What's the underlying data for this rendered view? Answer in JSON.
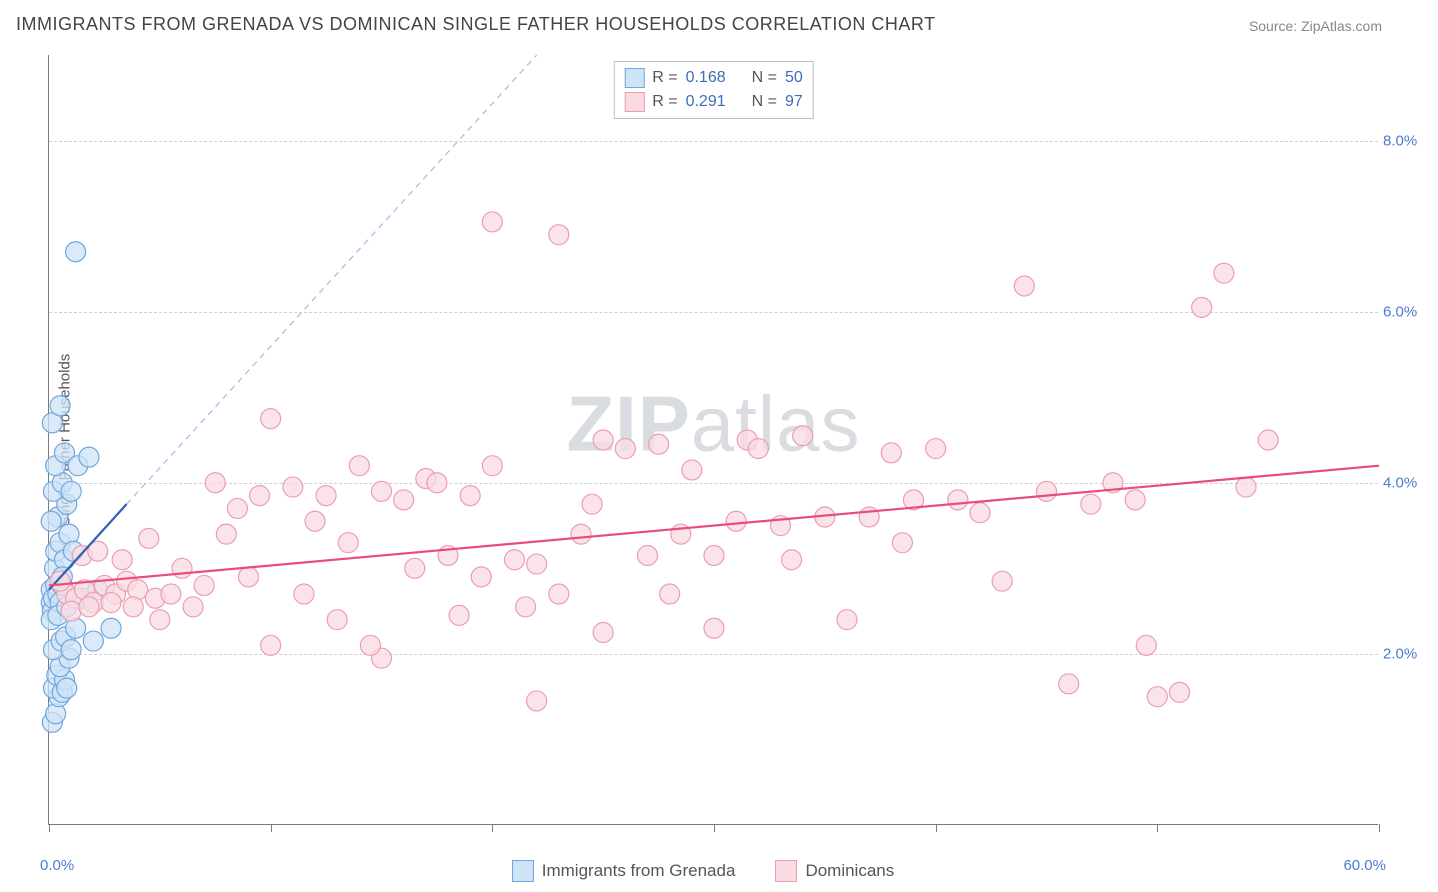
{
  "title": "IMMIGRANTS FROM GRENADA VS DOMINICAN SINGLE FATHER HOUSEHOLDS CORRELATION CHART",
  "source_label": "Source:",
  "source_value": "ZipAtlas.com",
  "watermark_bold": "ZIP",
  "watermark_rest": "atlas",
  "chart": {
    "type": "scatter",
    "xlim": [
      0,
      60
    ],
    "ylim": [
      0,
      9
    ],
    "x_start_label": "0.0%",
    "x_end_label": "60.0%",
    "y_ticks": [
      2.0,
      4.0,
      6.0,
      8.0
    ],
    "y_tick_labels": [
      "2.0%",
      "4.0%",
      "6.0%",
      "8.0%"
    ],
    "x_tick_positions": [
      0,
      10,
      20,
      30,
      40,
      50,
      60
    ],
    "ylabel": "Single Father Households",
    "grid_color": "#d0d0d0",
    "axis_color": "#7a7a7a",
    "tick_label_color": "#4a7bd0",
    "background_color": "#ffffff",
    "point_radius": 10,
    "point_stroke_width": 1.2,
    "series": [
      {
        "name": "Immigrants from Grenada",
        "fill": "#cfe3f7",
        "stroke": "#6fa6de",
        "legend_fill": "#cfe3f7",
        "legend_stroke": "#6fa6de",
        "R": 0.168,
        "N": 50,
        "trend": {
          "x1": 0,
          "y1": 2.75,
          "x2": 3.5,
          "y2": 3.75,
          "color": "#2d5fb2",
          "width": 2.2
        },
        "trend_ext": {
          "x1": 3.5,
          "y1": 3.75,
          "x2": 22,
          "y2": 9.0,
          "color": "#9fbde0",
          "width": 1.2,
          "dash": "6,5"
        },
        "points": [
          [
            0.1,
            2.75
          ],
          [
            0.1,
            2.6
          ],
          [
            0.15,
            2.5
          ],
          [
            0.1,
            2.4
          ],
          [
            0.2,
            2.65
          ],
          [
            0.3,
            2.8
          ],
          [
            0.4,
            2.7
          ],
          [
            0.25,
            3.0
          ],
          [
            0.5,
            2.6
          ],
          [
            0.6,
            2.8
          ],
          [
            0.15,
            1.2
          ],
          [
            0.3,
            1.3
          ],
          [
            0.45,
            1.5
          ],
          [
            0.2,
            1.6
          ],
          [
            0.6,
            1.55
          ],
          [
            0.35,
            1.75
          ],
          [
            0.7,
            1.7
          ],
          [
            0.8,
            1.6
          ],
          [
            0.5,
            1.85
          ],
          [
            0.9,
            1.95
          ],
          [
            0.2,
            2.05
          ],
          [
            0.55,
            2.15
          ],
          [
            0.75,
            2.2
          ],
          [
            1.0,
            2.05
          ],
          [
            1.2,
            2.3
          ],
          [
            0.3,
            3.2
          ],
          [
            0.5,
            3.3
          ],
          [
            0.7,
            3.1
          ],
          [
            0.9,
            3.4
          ],
          [
            1.1,
            3.2
          ],
          [
            0.4,
            3.6
          ],
          [
            0.8,
            3.75
          ],
          [
            0.2,
            3.9
          ],
          [
            0.6,
            4.0
          ],
          [
            1.0,
            3.9
          ],
          [
            0.3,
            4.2
          ],
          [
            0.7,
            4.35
          ],
          [
            1.3,
            4.2
          ],
          [
            1.8,
            4.3
          ],
          [
            0.15,
            4.7
          ],
          [
            0.6,
            2.9
          ],
          [
            1.5,
            2.65
          ],
          [
            2.2,
            2.75
          ],
          [
            2.8,
            2.3
          ],
          [
            0.1,
            3.55
          ],
          [
            0.5,
            4.9
          ],
          [
            1.2,
            6.7
          ],
          [
            0.4,
            2.45
          ],
          [
            0.8,
            2.55
          ],
          [
            2.0,
            2.15
          ]
        ]
      },
      {
        "name": "Dominicans",
        "fill": "#fadbe2",
        "stroke": "#ec9db2",
        "legend_fill": "#fadbe2",
        "legend_stroke": "#ec9db2",
        "R": 0.291,
        "N": 97,
        "trend": {
          "x1": 0,
          "y1": 2.8,
          "x2": 60,
          "y2": 4.2,
          "color": "#e94b7a",
          "width": 2.2
        },
        "points": [
          [
            0.8,
            2.7
          ],
          [
            1.2,
            2.65
          ],
          [
            1.6,
            2.75
          ],
          [
            2.0,
            2.6
          ],
          [
            2.5,
            2.8
          ],
          [
            3.0,
            2.7
          ],
          [
            3.5,
            2.85
          ],
          [
            4.0,
            2.75
          ],
          [
            4.8,
            2.65
          ],
          [
            5.5,
            2.7
          ],
          [
            1.0,
            2.5
          ],
          [
            1.8,
            2.55
          ],
          [
            2.8,
            2.6
          ],
          [
            3.8,
            2.55
          ],
          [
            0.5,
            2.85
          ],
          [
            6.0,
            3.0
          ],
          [
            7.0,
            2.8
          ],
          [
            8.0,
            3.4
          ],
          [
            8.5,
            3.7
          ],
          [
            9.0,
            2.9
          ],
          [
            10.0,
            4.75
          ],
          [
            10.0,
            2.1
          ],
          [
            11.0,
            3.95
          ],
          [
            12.0,
            3.55
          ],
          [
            12.5,
            3.85
          ],
          [
            13.0,
            2.4
          ],
          [
            14.0,
            4.2
          ],
          [
            15.0,
            3.9
          ],
          [
            15.0,
            1.95
          ],
          [
            16.0,
            3.8
          ],
          [
            17.0,
            4.05
          ],
          [
            17.5,
            4.0
          ],
          [
            18.0,
            3.15
          ],
          [
            18.5,
            2.45
          ],
          [
            19.0,
            3.85
          ],
          [
            20.0,
            4.2
          ],
          [
            20.0,
            7.05
          ],
          [
            21.0,
            3.1
          ],
          [
            21.5,
            2.55
          ],
          [
            22.0,
            3.05
          ],
          [
            23.0,
            6.9
          ],
          [
            23.0,
            2.7
          ],
          [
            24.0,
            3.4
          ],
          [
            25.0,
            4.5
          ],
          [
            25.0,
            2.25
          ],
          [
            26.0,
            4.4
          ],
          [
            27.0,
            3.15
          ],
          [
            27.5,
            4.45
          ],
          [
            28.0,
            2.7
          ],
          [
            29.0,
            4.15
          ],
          [
            30.0,
            3.15
          ],
          [
            30.0,
            2.3
          ],
          [
            31.0,
            3.55
          ],
          [
            31.5,
            4.5
          ],
          [
            32.0,
            4.4
          ],
          [
            33.0,
            3.5
          ],
          [
            34.0,
            4.55
          ],
          [
            35.0,
            3.6
          ],
          [
            36.0,
            2.4
          ],
          [
            22.0,
            1.45
          ],
          [
            37.0,
            3.6
          ],
          [
            38.0,
            4.35
          ],
          [
            39.0,
            3.8
          ],
          [
            40.0,
            4.4
          ],
          [
            41.0,
            3.8
          ],
          [
            42.0,
            3.65
          ],
          [
            43.0,
            2.85
          ],
          [
            44.0,
            6.3
          ],
          [
            45.0,
            3.9
          ],
          [
            46.0,
            1.65
          ],
          [
            47.0,
            3.75
          ],
          [
            48.0,
            4.0
          ],
          [
            49.0,
            3.8
          ],
          [
            49.5,
            2.1
          ],
          [
            50.0,
            1.5
          ],
          [
            51.0,
            1.55
          ],
          [
            52.0,
            6.05
          ],
          [
            53.0,
            6.45
          ],
          [
            54.0,
            3.95
          ],
          [
            55.0,
            4.5
          ],
          [
            1.5,
            3.15
          ],
          [
            2.2,
            3.2
          ],
          [
            3.3,
            3.1
          ],
          [
            4.5,
            3.35
          ],
          [
            5.0,
            2.4
          ],
          [
            6.5,
            2.55
          ],
          [
            7.5,
            4.0
          ],
          [
            9.5,
            3.85
          ],
          [
            11.5,
            2.7
          ],
          [
            13.5,
            3.3
          ],
          [
            16.5,
            3.0
          ],
          [
            19.5,
            2.9
          ],
          [
            24.5,
            3.75
          ],
          [
            28.5,
            3.4
          ],
          [
            33.5,
            3.1
          ],
          [
            38.5,
            3.3
          ],
          [
            14.5,
            2.1
          ]
        ]
      }
    ]
  },
  "legend_top_rows": [
    {
      "swatch_fill": "#cfe3f7",
      "swatch_stroke": "#6fa6de",
      "r_label": "R =",
      "r_val": "0.168",
      "n_label": "N =",
      "n_val": "50"
    },
    {
      "swatch_fill": "#fadbe2",
      "swatch_stroke": "#ec9db2",
      "r_label": "R =",
      "r_val": "0.291",
      "n_label": "N =",
      "n_val": "97"
    }
  ],
  "legend_bottom": [
    {
      "swatch_fill": "#cfe3f7",
      "swatch_stroke": "#6fa6de",
      "label": "Immigrants from Grenada"
    },
    {
      "swatch_fill": "#fadbe2",
      "swatch_stroke": "#ec9db2",
      "label": "Dominicans"
    }
  ]
}
